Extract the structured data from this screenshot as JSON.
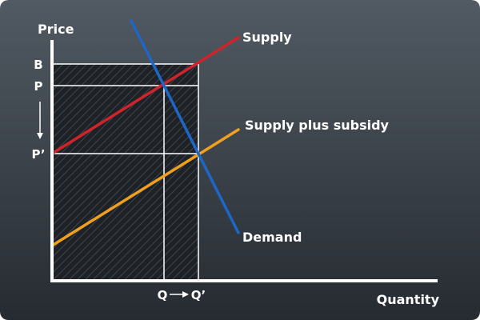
{
  "axes": {
    "y_title": "Price",
    "x_title": "Quantity"
  },
  "price_labels": {
    "b": "B",
    "p": "P",
    "p_prime": "P’"
  },
  "quantity_labels": {
    "q": "Q",
    "q_prime": "Q’"
  },
  "curves": {
    "supply": "Supply",
    "supply_subsidy": "Supply plus subsidy",
    "demand": "Demand"
  },
  "colors": {
    "background_top": "#515a63",
    "background_bottom": "#262b31",
    "axis": "#ffffff",
    "guide_lines": "#ffffff",
    "shaded_area": "#1e2227",
    "hatch": "#3e454c",
    "supply": "#d0232a",
    "supply_subsidy": "#f0a01e",
    "demand": "#1e66c8"
  }
}
